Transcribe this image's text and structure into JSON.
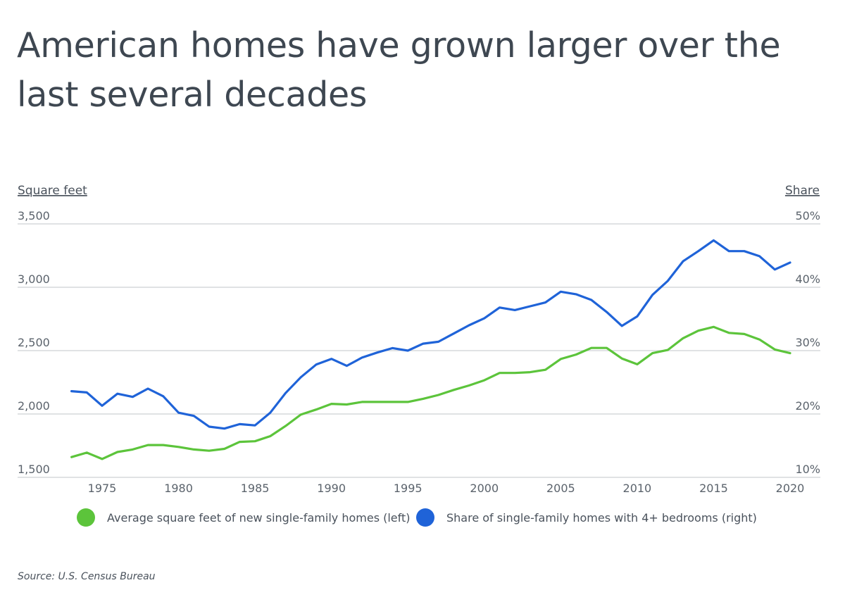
{
  "title": "American homes have grown larger over the last several decades",
  "source": "Source: U.S. Census Bureau",
  "chart_data": {
    "type": "line",
    "title": "American homes have grown larger over the last several decades",
    "ylabel_left": "Square feet",
    "ylabel_right": "Share",
    "ylim_left": [
      1500,
      3500
    ],
    "ylim_right": [
      10,
      50
    ],
    "yticks_left": [
      "1,500",
      "2,000",
      "2,500",
      "3,000",
      "3,500"
    ],
    "yticks_left_values": [
      1500,
      2000,
      2500,
      3000,
      3500
    ],
    "yticks_right": [
      "10%",
      "20%",
      "30%",
      "40%",
      "50%"
    ],
    "yticks_right_values": [
      10,
      20,
      30,
      40,
      50
    ],
    "xticks": [
      "1975",
      "1980",
      "1985",
      "1990",
      "1995",
      "2000",
      "2005",
      "2010",
      "2015",
      "2020"
    ],
    "xlim": [
      1973,
      2020
    ],
    "grid": true,
    "legend_placement": "bottom",
    "x": [
      1973,
      1974,
      1975,
      1976,
      1977,
      1978,
      1979,
      1980,
      1981,
      1982,
      1983,
      1984,
      1985,
      1986,
      1987,
      1988,
      1989,
      1990,
      1991,
      1992,
      1993,
      1994,
      1995,
      1996,
      1997,
      1998,
      1999,
      2000,
      2001,
      2002,
      2003,
      2004,
      2005,
      2006,
      2007,
      2008,
      2009,
      2010,
      2011,
      2012,
      2013,
      2014,
      2015,
      2016,
      2017,
      2018,
      2019,
      2020
    ],
    "series": [
      {
        "name": "Average square feet of new single-family homes (left)",
        "axis": "left",
        "color": "#5cc43b",
        "values": [
          1660,
          1695,
          1645,
          1700,
          1720,
          1755,
          1755,
          1740,
          1720,
          1710,
          1725,
          1780,
          1785,
          1825,
          1905,
          1995,
          2035,
          2080,
          2075,
          2095,
          2095,
          2095,
          2095,
          2120,
          2150,
          2190,
          2225,
          2266,
          2324,
          2324,
          2330,
          2349,
          2434,
          2469,
          2521,
          2521,
          2438,
          2392,
          2480,
          2505,
          2598,
          2657,
          2687,
          2640,
          2631,
          2588,
          2509,
          2480
        ]
      },
      {
        "name": "Share of single-family homes with 4+ bedrooms (right)",
        "axis": "right",
        "color": "#1f63d8",
        "values": [
          23.6,
          23.4,
          21.3,
          23.2,
          22.7,
          24.0,
          22.8,
          20.2,
          19.7,
          18.0,
          17.7,
          18.4,
          18.2,
          20.2,
          23.3,
          25.8,
          27.8,
          28.7,
          27.6,
          28.9,
          29.7,
          30.4,
          30.0,
          31.1,
          31.4,
          32.7,
          34.0,
          35.1,
          36.8,
          36.4,
          37.0,
          37.6,
          39.3,
          38.9,
          38.0,
          36.1,
          33.9,
          35.4,
          38.8,
          41.0,
          44.1,
          45.7,
          47.4,
          45.7,
          45.7,
          44.9,
          42.8,
          43.9
        ]
      }
    ]
  }
}
